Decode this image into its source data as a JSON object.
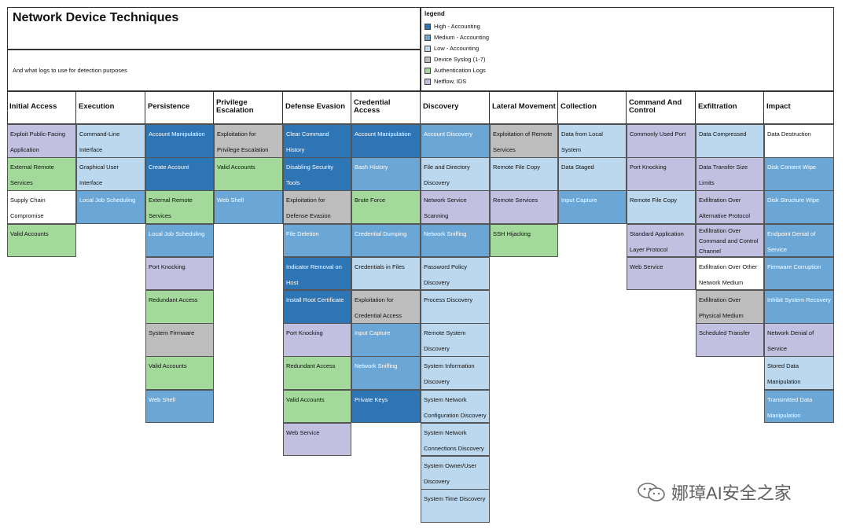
{
  "header": {
    "title": "Network Device Techniques",
    "subtitle": "And what logs to use for detection purposes"
  },
  "legend": {
    "title": "legend",
    "items": [
      {
        "label": "High - Accounting",
        "color": "#2e75b6"
      },
      {
        "label": "Medium - Accounting",
        "color": "#6aa7d6"
      },
      {
        "label": "Low - Accounting",
        "color": "#bcd8ee"
      },
      {
        "label": "Device Syslog (1-7)",
        "color": "#bdbdbd"
      },
      {
        "label": "Authentication Logs",
        "color": "#a3d99b"
      },
      {
        "label": "Netflow, IDS",
        "color": "#c2c0e0"
      }
    ]
  },
  "columns": [
    {
      "tactic": "Initial Access",
      "techniques": [
        {
          "label": "Exploit Public-Facing Application",
          "level": "net"
        },
        {
          "label": "External Remote Services",
          "level": "auth"
        },
        {
          "label": "Supply Chain Compromise",
          "level": "none"
        },
        {
          "label": "Valid Accounts",
          "level": "auth"
        }
      ]
    },
    {
      "tactic": "Execution",
      "techniques": [
        {
          "label": "Command-Line Interface",
          "level": "low"
        },
        {
          "label": "Graphical User Interface",
          "level": "low"
        },
        {
          "label": "Local Job Scheduling",
          "level": "med"
        }
      ]
    },
    {
      "tactic": "Persistence",
      "techniques": [
        {
          "label": "Account Manipulation",
          "level": "high"
        },
        {
          "label": "Create Account",
          "level": "high"
        },
        {
          "label": "External Remote Services",
          "level": "auth"
        },
        {
          "label": "Local Job Scheduling",
          "level": "med"
        },
        {
          "label": "Port Knocking",
          "level": "net"
        },
        {
          "label": "Redundant Access",
          "level": "auth"
        },
        {
          "label": "System Firmware",
          "level": "sys"
        },
        {
          "label": "Valid Accounts",
          "level": "auth"
        },
        {
          "label": "Web Shell",
          "level": "med"
        }
      ]
    },
    {
      "tactic": "Privilege Escalation",
      "techniques": [
        {
          "label": "Exploitation for Privilege Escalation",
          "level": "sys"
        },
        {
          "label": "Valid Accounts",
          "level": "auth"
        },
        {
          "label": "Web Shell",
          "level": "med"
        }
      ]
    },
    {
      "tactic": "Defense Evasion",
      "techniques": [
        {
          "label": "Clear Command History",
          "level": "high"
        },
        {
          "label": "Disabling Security Tools",
          "level": "high"
        },
        {
          "label": "Exploitation for Defense Evasion",
          "level": "sys"
        },
        {
          "label": "File Deletion",
          "level": "med"
        },
        {
          "label": "Indicator Removal on Host",
          "level": "high"
        },
        {
          "label": "Install Root Certificate",
          "level": "high"
        },
        {
          "label": "Port Knocking",
          "level": "net"
        },
        {
          "label": "Redundant Access",
          "level": "auth"
        },
        {
          "label": "Valid Accounts",
          "level": "auth"
        },
        {
          "label": "Web Service",
          "level": "net"
        }
      ]
    },
    {
      "tactic": "Credential Access",
      "techniques": [
        {
          "label": "Account Manipulation",
          "level": "high"
        },
        {
          "label": "Bash History",
          "level": "med"
        },
        {
          "label": "Brute Force",
          "level": "auth"
        },
        {
          "label": "Credential Dumping",
          "level": "med"
        },
        {
          "label": "Credentials in Files",
          "level": "low"
        },
        {
          "label": "Exploitation for Credential Access",
          "level": "sys"
        },
        {
          "label": "Input Capture",
          "level": "med"
        },
        {
          "label": "Network Sniffing",
          "level": "med"
        },
        {
          "label": "Private Keys",
          "level": "high"
        }
      ]
    },
    {
      "tactic": "Discovery",
      "techniques": [
        {
          "label": "Account Discovery",
          "level": "med"
        },
        {
          "label": "File and Directory Discovery",
          "level": "low"
        },
        {
          "label": "Network Service Scanning",
          "level": "net"
        },
        {
          "label": "Network Sniffing",
          "level": "med"
        },
        {
          "label": "Password Policy Discovery",
          "level": "low"
        },
        {
          "label": "Process Discovery",
          "level": "low"
        },
        {
          "label": "Remote System Discovery",
          "level": "low"
        },
        {
          "label": "System Information Discovery",
          "level": "low"
        },
        {
          "label": "System Network Configuration Discovery",
          "level": "low"
        },
        {
          "label": "System Network Connections Discovery",
          "level": "low"
        },
        {
          "label": "System Owner/User Discovery",
          "level": "low"
        },
        {
          "label": "System Time Discovery",
          "level": "low"
        }
      ]
    },
    {
      "tactic": "Lateral Movement",
      "techniques": [
        {
          "label": "Exploitation of Remote Services",
          "level": "sys"
        },
        {
          "label": "Remote File Copy",
          "level": "low"
        },
        {
          "label": "Remote Services",
          "level": "net"
        },
        {
          "label": "SSH Hijacking",
          "level": "auth"
        }
      ]
    },
    {
      "tactic": "Collection",
      "techniques": [
        {
          "label": "Data from Local System",
          "level": "low"
        },
        {
          "label": "Data Staged",
          "level": "low"
        },
        {
          "label": "Input Capture",
          "level": "med"
        }
      ]
    },
    {
      "tactic": "Command And Control",
      "techniques": [
        {
          "label": "Commonly Used Port",
          "level": "net"
        },
        {
          "label": "Port Knocking",
          "level": "net"
        },
        {
          "label": "Remote File Copy",
          "level": "low"
        },
        {
          "label": "Standard Application Layer Protocol",
          "level": "net"
        },
        {
          "label": "Web Service",
          "level": "net"
        }
      ]
    },
    {
      "tactic": "Exfiltration",
      "techniques": [
        {
          "label": "Data Compressed",
          "level": "low"
        },
        {
          "label": "Data Transfer Size Limits",
          "level": "net"
        },
        {
          "label": "Exfiltration Over Alternative Protocol",
          "level": "net"
        },
        {
          "label": "Exfiltration Over Command and Control Channel",
          "level": "net"
        },
        {
          "label": "Exfiltration Over Other Network Medium",
          "level": "none"
        },
        {
          "label": "Exfiltration Over Physical Medium",
          "level": "sys"
        },
        {
          "label": "Scheduled Transfer",
          "level": "net"
        }
      ]
    },
    {
      "tactic": "Impact",
      "techniques": [
        {
          "label": "Data Destruction",
          "level": "none"
        },
        {
          "label": "Disk Content Wipe",
          "level": "med"
        },
        {
          "label": "Disk Structure Wipe",
          "level": "med"
        },
        {
          "label": "Endpoint Denial of Service",
          "level": "med"
        },
        {
          "label": "Firmware Corruption",
          "level": "med"
        },
        {
          "label": "Inhibit System Recovery",
          "level": "med"
        },
        {
          "label": "Network Denial of Service",
          "level": "net"
        },
        {
          "label": "Stored Data Manipulation",
          "level": "low"
        },
        {
          "label": "Transmitted Data Manipulation",
          "level": "med"
        }
      ]
    }
  ],
  "watermark": {
    "text": "娜璋AI安全之家",
    "icon": "wechat-icon"
  }
}
